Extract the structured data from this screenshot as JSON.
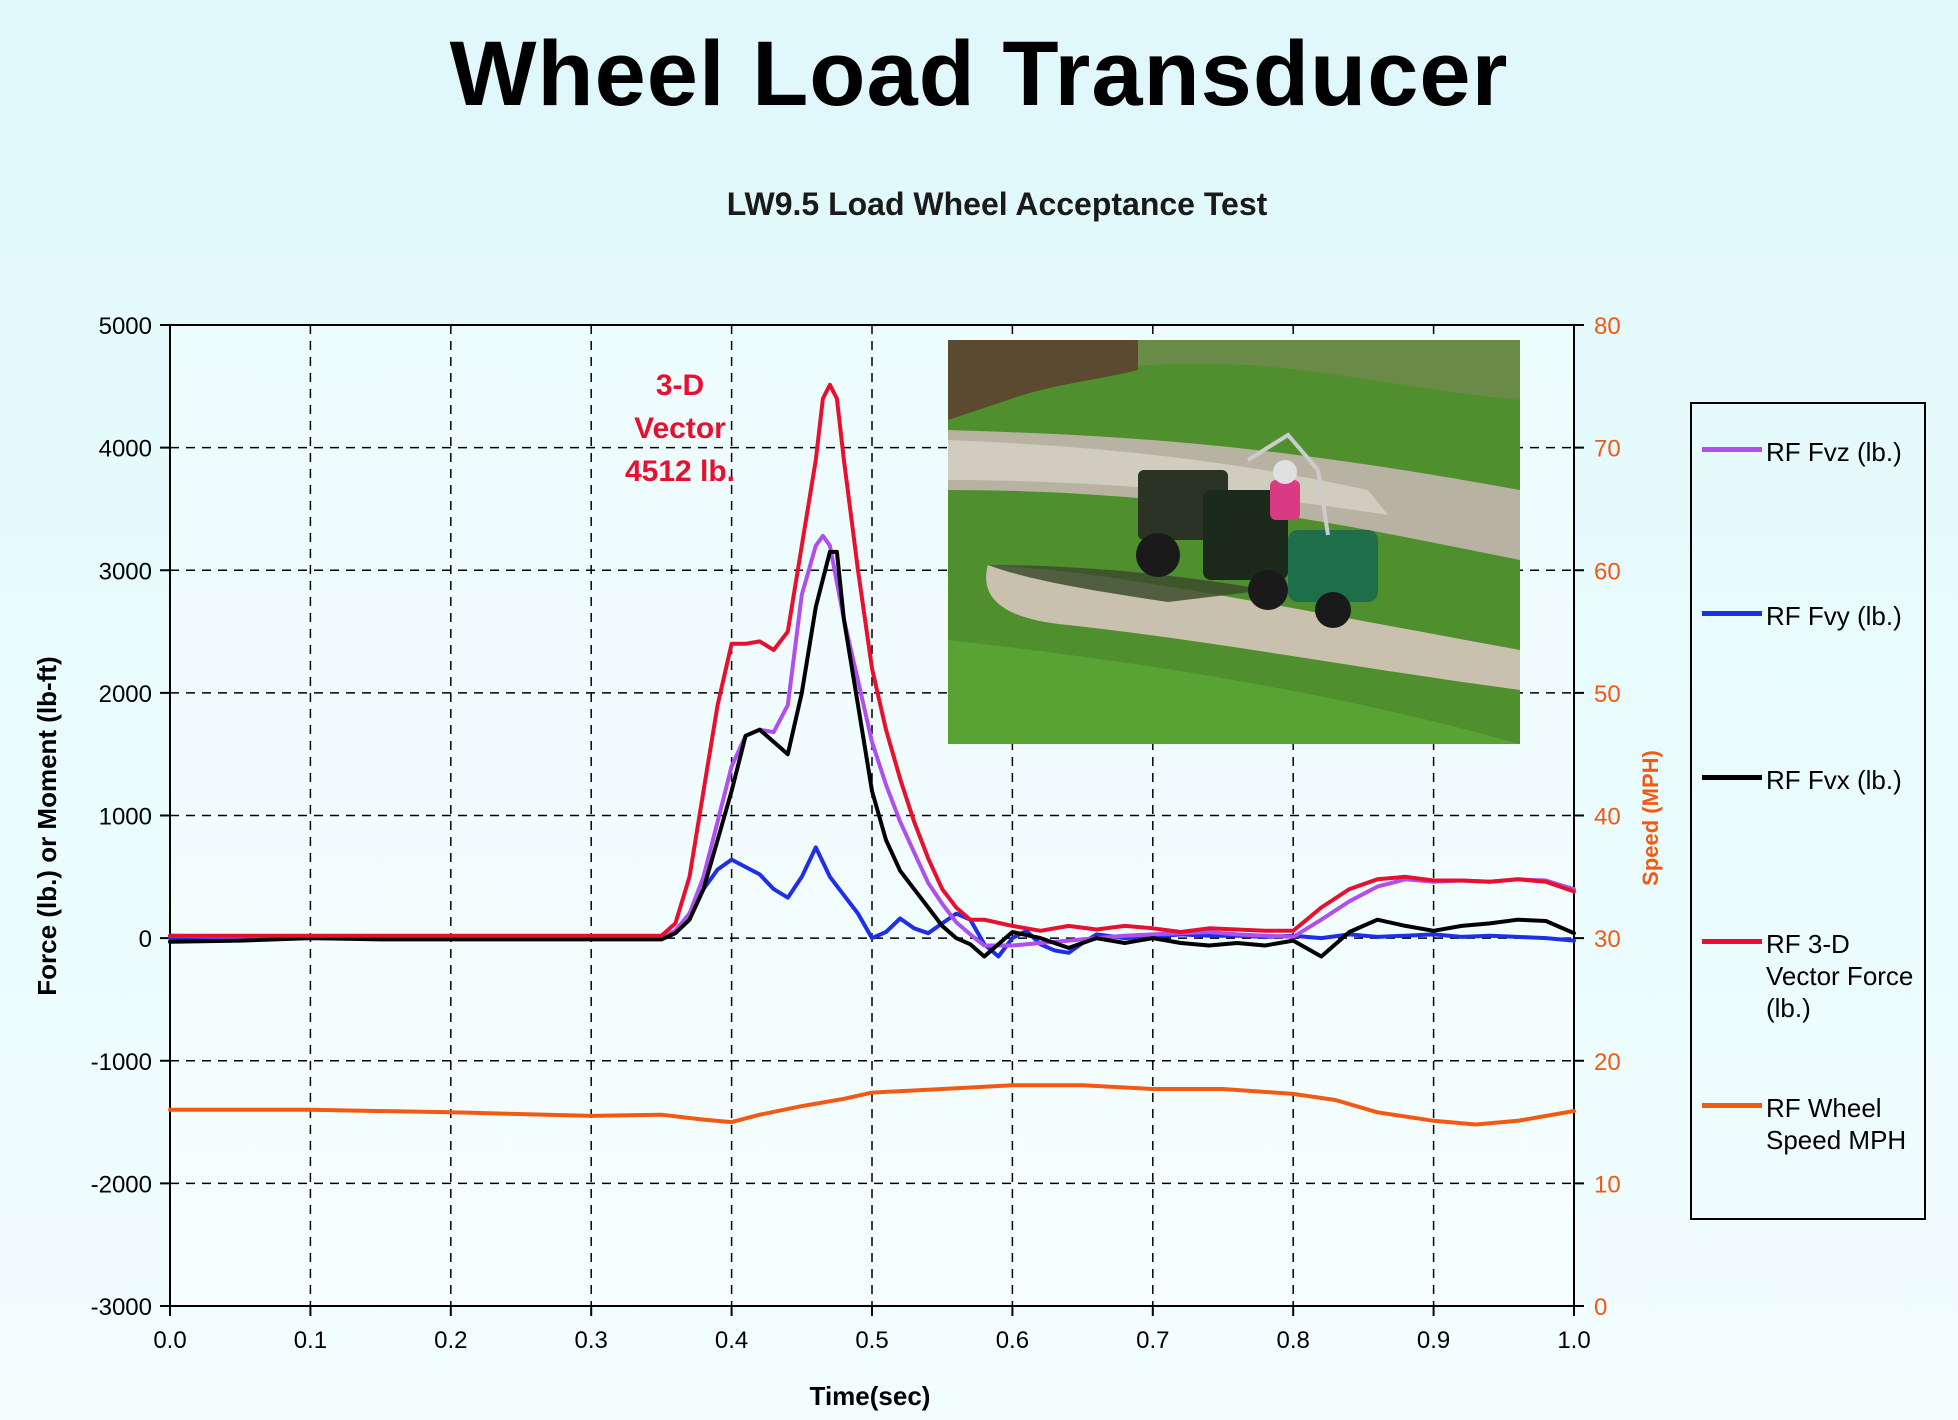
{
  "slide_title": "Wheel Load Transducer",
  "annotation": {
    "lines": [
      "3-D",
      "Vector",
      "4512 lb."
    ],
    "color": "#e8102f"
  },
  "photo": {
    "description_icon": "utv-photo-icon"
  },
  "legend": [
    {
      "label": "RF Fvz (lb.)",
      "color": "#b04ff0"
    },
    {
      "label": "RF Fvy (lb.)",
      "color": "#1f2fe8"
    },
    {
      "label": "RF Fvx (lb.)",
      "color": "#000000"
    },
    {
      "label": "RF 3-D Vector Force (lb.)",
      "color": "#e8102f"
    },
    {
      "label": "RF Wheel Speed MPH",
      "color": "#f25a12"
    }
  ],
  "chart_data": {
    "type": "line",
    "title": "LW9.5 Load Wheel Acceptance Test",
    "xlabel": "Time(sec)",
    "ylabel": "Force (lb.) or Moment (lb-ft)",
    "y2label": "Speed (MPH)",
    "xlim": [
      0,
      1.0
    ],
    "ylim": [
      -3000,
      5000
    ],
    "y2lim": [
      0,
      80
    ],
    "xticks": [
      "0.0",
      "0.1",
      "0.2",
      "0.3",
      "0.4",
      "0.5",
      "0.6",
      "0.7",
      "0.8",
      "0.9",
      "1.0"
    ],
    "yticks": [
      "5000",
      "4000",
      "3000",
      "2000",
      "1000",
      "0",
      "-1000",
      "-2000",
      "-3000"
    ],
    "y2ticks": [
      "80",
      "70",
      "60",
      "50",
      "40",
      "30",
      "20",
      "10",
      "0"
    ],
    "grid": true,
    "legend_position": "right",
    "axis_colors": {
      "left": "#000000",
      "right": "#f25a12"
    },
    "series": [
      {
        "name": "RF Fvz (lb.)",
        "axis": "left",
        "color": "#b04ff0",
        "x": [
          0,
          0.05,
          0.1,
          0.15,
          0.2,
          0.25,
          0.3,
          0.35,
          0.36,
          0.37,
          0.38,
          0.39,
          0.4,
          0.41,
          0.42,
          0.43,
          0.44,
          0.45,
          0.46,
          0.465,
          0.47,
          0.48,
          0.49,
          0.5,
          0.51,
          0.52,
          0.53,
          0.54,
          0.55,
          0.56,
          0.57,
          0.58,
          0.6,
          0.62,
          0.64,
          0.66,
          0.68,
          0.7,
          0.72,
          0.74,
          0.76,
          0.78,
          0.8,
          0.82,
          0.84,
          0.86,
          0.88,
          0.9,
          0.92,
          0.94,
          0.96,
          0.98,
          1.0
        ],
        "y": [
          20,
          10,
          0,
          5,
          10,
          10,
          10,
          10,
          60,
          200,
          500,
          950,
          1400,
          1650,
          1700,
          1680,
          1900,
          2800,
          3200,
          3280,
          3200,
          2600,
          2100,
          1600,
          1250,
          950,
          700,
          450,
          280,
          130,
          30,
          -60,
          -60,
          -40,
          -20,
          0,
          20,
          30,
          40,
          50,
          30,
          20,
          10,
          150,
          300,
          420,
          480,
          460,
          470,
          460,
          480,
          470,
          400
        ]
      },
      {
        "name": "RF Fvy (lb.)",
        "axis": "left",
        "color": "#1f2fe8",
        "x": [
          0,
          0.05,
          0.1,
          0.15,
          0.2,
          0.25,
          0.3,
          0.35,
          0.36,
          0.37,
          0.38,
          0.39,
          0.4,
          0.41,
          0.42,
          0.43,
          0.44,
          0.45,
          0.46,
          0.47,
          0.48,
          0.49,
          0.5,
          0.51,
          0.52,
          0.53,
          0.54,
          0.55,
          0.56,
          0.57,
          0.58,
          0.59,
          0.6,
          0.61,
          0.62,
          0.63,
          0.64,
          0.65,
          0.66,
          0.68,
          0.7,
          0.72,
          0.74,
          0.76,
          0.78,
          0.8,
          0.82,
          0.84,
          0.86,
          0.88,
          0.9,
          0.92,
          0.94,
          0.96,
          0.98,
          1.0
        ],
        "y": [
          0,
          0,
          0,
          0,
          0,
          0,
          0,
          0,
          60,
          200,
          400,
          560,
          640,
          580,
          520,
          400,
          330,
          500,
          740,
          500,
          350,
          200,
          0,
          50,
          160,
          80,
          40,
          120,
          200,
          150,
          -50,
          -150,
          0,
          60,
          -50,
          -100,
          -120,
          -40,
          30,
          0,
          10,
          30,
          20,
          20,
          10,
          20,
          0,
          30,
          10,
          20,
          30,
          10,
          20,
          10,
          0,
          -20
        ]
      },
      {
        "name": "RF Fvx (lb.)",
        "axis": "left",
        "color": "#000000",
        "x": [
          0,
          0.05,
          0.1,
          0.15,
          0.2,
          0.25,
          0.3,
          0.35,
          0.36,
          0.37,
          0.38,
          0.39,
          0.4,
          0.41,
          0.42,
          0.43,
          0.44,
          0.45,
          0.46,
          0.47,
          0.475,
          0.48,
          0.49,
          0.5,
          0.51,
          0.52,
          0.53,
          0.54,
          0.55,
          0.56,
          0.57,
          0.58,
          0.6,
          0.62,
          0.64,
          0.66,
          0.68,
          0.7,
          0.72,
          0.74,
          0.76,
          0.78,
          0.8,
          0.82,
          0.84,
          0.86,
          0.88,
          0.9,
          0.92,
          0.94,
          0.96,
          0.98,
          1.0
        ],
        "y": [
          -30,
          -20,
          0,
          -10,
          -10,
          -10,
          -10,
          -10,
          40,
          150,
          400,
          800,
          1200,
          1650,
          1700,
          1600,
          1500,
          2000,
          2700,
          3150,
          3150,
          2600,
          1900,
          1200,
          800,
          550,
          400,
          250,
          100,
          0,
          -50,
          -150,
          50,
          0,
          -80,
          0,
          -40,
          0,
          -40,
          -60,
          -40,
          -60,
          -20,
          -150,
          50,
          150,
          100,
          60,
          100,
          120,
          150,
          140,
          40
        ]
      },
      {
        "name": "RF 3-D Vector Force (lb.)",
        "axis": "left",
        "color": "#e8102f",
        "x": [
          0,
          0.05,
          0.1,
          0.15,
          0.2,
          0.25,
          0.3,
          0.35,
          0.36,
          0.37,
          0.38,
          0.39,
          0.4,
          0.41,
          0.42,
          0.43,
          0.44,
          0.45,
          0.46,
          0.465,
          0.47,
          0.475,
          0.48,
          0.49,
          0.5,
          0.51,
          0.52,
          0.53,
          0.54,
          0.55,
          0.56,
          0.57,
          0.58,
          0.6,
          0.62,
          0.64,
          0.66,
          0.68,
          0.7,
          0.72,
          0.74,
          0.76,
          0.78,
          0.8,
          0.82,
          0.84,
          0.86,
          0.88,
          0.9,
          0.92,
          0.94,
          0.96,
          0.98,
          1.0
        ],
        "y": [
          20,
          20,
          20,
          20,
          20,
          20,
          20,
          20,
          120,
          500,
          1200,
          1900,
          2400,
          2400,
          2420,
          2350,
          2500,
          3200,
          3900,
          4400,
          4512,
          4400,
          3900,
          3000,
          2200,
          1700,
          1300,
          950,
          650,
          400,
          250,
          150,
          150,
          100,
          60,
          100,
          70,
          100,
          80,
          50,
          80,
          70,
          60,
          60,
          250,
          400,
          480,
          500,
          470,
          470,
          460,
          480,
          460,
          380
        ]
      },
      {
        "name": "RF Wheel Speed MPH",
        "axis": "right",
        "color": "#f25a12",
        "x": [
          0,
          0.1,
          0.2,
          0.3,
          0.35,
          0.38,
          0.4,
          0.42,
          0.45,
          0.48,
          0.5,
          0.55,
          0.6,
          0.65,
          0.7,
          0.75,
          0.8,
          0.83,
          0.86,
          0.9,
          0.93,
          0.96,
          1.0
        ],
        "y": [
          16.0,
          16.0,
          15.8,
          15.5,
          15.6,
          15.2,
          15.0,
          15.6,
          16.3,
          16.9,
          17.4,
          17.7,
          18.0,
          18.0,
          17.7,
          17.7,
          17.3,
          16.8,
          15.8,
          15.1,
          14.8,
          15.1,
          15.9
        ]
      }
    ]
  }
}
